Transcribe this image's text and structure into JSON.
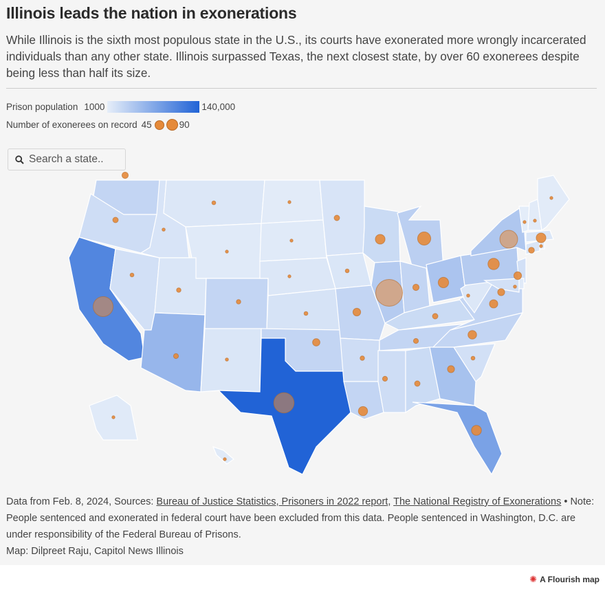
{
  "header": {
    "title": "Illinois leads the nation in exonerations",
    "subtitle": "While Illinois is the sixth most populous state in the U.S., its courts have exonerated more wrongly incarcerated individuals than any other state. Illinois surpassed Texas, the next closest state, by over 60 exonerees despite being less than half its size."
  },
  "legend": {
    "color_label": "Prison population",
    "color_min": "1000",
    "color_max": "140,000",
    "color_low": "#e6eef9",
    "color_high": "#2163d6",
    "size_label": "Number of exonerees on record",
    "size_min": "45",
    "size_max": "90",
    "bubble_color": "#e58a3a"
  },
  "search": {
    "placeholder": "Search a state..",
    "icon": "search-icon"
  },
  "footer": {
    "prefix": "Data from Feb. 8, 2024, Sources: ",
    "link1": "Bureau of Justice Statistics, Prisoners in 2022 report",
    "sep": ", ",
    "link2": "The National Registry of Exonerations",
    "note": " • Note: People sentenced and exonerated in federal court have been excluded from this data. People sentenced in Washington, D.C. are under responsibility of the Federal Bureau of Prisons.",
    "byline": "Map: Dilpreet Raju, Capitol News Illinois"
  },
  "credit": {
    "label": "A Flourish map",
    "icon": "flourish-star-icon"
  },
  "map_data": {
    "states": [
      {
        "abbr": "WA",
        "shade": 0.18,
        "exonerees": 8
      },
      {
        "abbr": "OR",
        "shade": 0.12,
        "exonerees": 6
      },
      {
        "abbr": "CA",
        "shade": 0.75,
        "exonerees": 80
      },
      {
        "abbr": "NV",
        "shade": 0.1,
        "exonerees": 3
      },
      {
        "abbr": "ID",
        "shade": 0.07,
        "exonerees": 2
      },
      {
        "abbr": "MT",
        "shade": 0.05,
        "exonerees": 3
      },
      {
        "abbr": "WY",
        "shade": 0.03,
        "exonerees": 1
      },
      {
        "abbr": "UT",
        "shade": 0.06,
        "exonerees": 4
      },
      {
        "abbr": "AZ",
        "shade": 0.4,
        "exonerees": 5
      },
      {
        "abbr": "CO",
        "shade": 0.18,
        "exonerees": 4
      },
      {
        "abbr": "NM",
        "shade": 0.06,
        "exonerees": 2
      },
      {
        "abbr": "ND",
        "shade": 0.02,
        "exonerees": 1
      },
      {
        "abbr": "SD",
        "shade": 0.03,
        "exonerees": 1
      },
      {
        "abbr": "NE",
        "shade": 0.05,
        "exonerees": 1
      },
      {
        "abbr": "KS",
        "shade": 0.08,
        "exonerees": 3
      },
      {
        "abbr": "OK",
        "shade": 0.18,
        "exonerees": 11
      },
      {
        "abbr": "TX",
        "shade": 1.0,
        "exonerees": 83
      },
      {
        "abbr": "MN",
        "shade": 0.07,
        "exonerees": 6
      },
      {
        "abbr": "IA",
        "shade": 0.06,
        "exonerees": 3
      },
      {
        "abbr": "MO",
        "shade": 0.18,
        "exonerees": 12
      },
      {
        "abbr": "AR",
        "shade": 0.12,
        "exonerees": 4
      },
      {
        "abbr": "LA",
        "shade": 0.18,
        "exonerees": 17
      },
      {
        "abbr": "WI",
        "shade": 0.14,
        "exonerees": 19
      },
      {
        "abbr": "IL",
        "shade": 0.25,
        "exonerees": 145
      },
      {
        "abbr": "MI",
        "shade": 0.22,
        "exonerees": 35
      },
      {
        "abbr": "IN",
        "shade": 0.18,
        "exonerees": 8
      },
      {
        "abbr": "OH",
        "shade": 0.3,
        "exonerees": 22
      },
      {
        "abbr": "KY",
        "shade": 0.14,
        "exonerees": 6
      },
      {
        "abbr": "TN",
        "shade": 0.18,
        "exonerees": 5
      },
      {
        "abbr": "MS",
        "shade": 0.12,
        "exonerees": 5
      },
      {
        "abbr": "AL",
        "shade": 0.14,
        "exonerees": 6
      },
      {
        "abbr": "GA",
        "shade": 0.32,
        "exonerees": 10
      },
      {
        "abbr": "FL",
        "shade": 0.55,
        "exonerees": 20
      },
      {
        "abbr": "SC",
        "shade": 0.1,
        "exonerees": 3
      },
      {
        "abbr": "NC",
        "shade": 0.18,
        "exonerees": 15
      },
      {
        "abbr": "VA",
        "shade": 0.18,
        "exonerees": 14
      },
      {
        "abbr": "WV",
        "shade": 0.05,
        "exonerees": 2
      },
      {
        "abbr": "PA",
        "shade": 0.25,
        "exonerees": 26
      },
      {
        "abbr": "NY",
        "shade": 0.28,
        "exonerees": 64
      },
      {
        "abbr": "NJ",
        "shade": 0.1,
        "exonerees": 12
      },
      {
        "abbr": "MD",
        "shade": 0.1,
        "exonerees": 10
      },
      {
        "abbr": "DE",
        "shade": 0.03,
        "exonerees": 2
      },
      {
        "abbr": "CT",
        "shade": 0.06,
        "exonerees": 7
      },
      {
        "abbr": "RI",
        "shade": 0.02,
        "exonerees": 1
      },
      {
        "abbr": "MA",
        "shade": 0.06,
        "exonerees": 19
      },
      {
        "abbr": "VT",
        "shade": 0.01,
        "exonerees": 1
      },
      {
        "abbr": "NH",
        "shade": 0.02,
        "exonerees": 1
      },
      {
        "abbr": "ME",
        "shade": 0.02,
        "exonerees": 1
      },
      {
        "abbr": "AK",
        "shade": 0.03,
        "exonerees": 1
      },
      {
        "abbr": "HI",
        "shade": 0.03,
        "exonerees": 1
      }
    ]
  }
}
